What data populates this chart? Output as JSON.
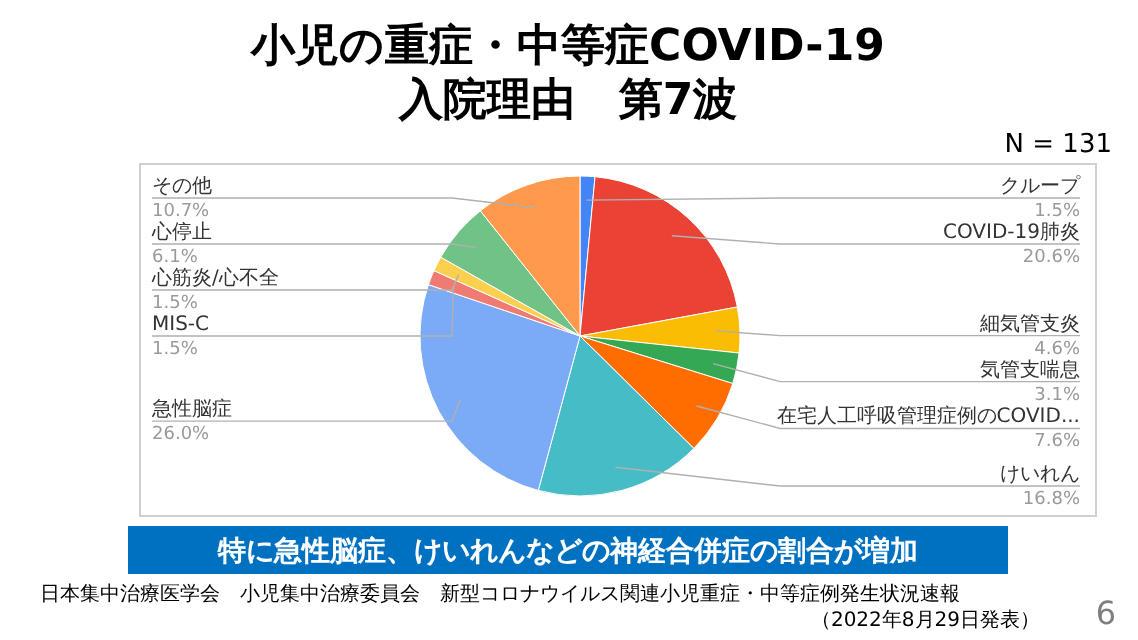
{
  "chart_data": {
    "type": "pie",
    "title": "小児の重症・中等症COVID-19\n入院理由　第7波",
    "categories": [
      "クループ",
      "COVID-19肺炎",
      "細気管支炎",
      "気管支喘息",
      "在宅人工呼吸管理症例のCOVID...",
      "けいれん",
      "急性脳症",
      "MIS-C",
      "心筋炎/心不全",
      "心停止",
      "その他"
    ],
    "values": [
      1.5,
      20.6,
      4.6,
      3.1,
      7.6,
      16.8,
      26.0,
      1.5,
      1.5,
      6.1,
      10.7
    ],
    "value_labels": [
      "1.5%",
      "20.6%",
      "4.6%",
      "3.1%",
      "7.6%",
      "16.8%",
      "26.0%",
      "1.5%",
      "1.5%",
      "6.1%",
      "10.7%"
    ],
    "colors": [
      "#4285f4",
      "#ea4335",
      "#fbbc04",
      "#34a853",
      "#ff6d01",
      "#46bdc6",
      "#7baaf7",
      "#f07b72",
      "#fcd04f",
      "#71c287",
      "#ff994d"
    ],
    "annotations": [
      "N = 131",
      "特に急性脳症、けいれんなどの神経合併症の割合が増加",
      "日本集中治療医学会　小児集中治療委員会　新型コロナウイルス関連小児重症・中等症例発生状況速報",
      "（2022年8月29日発表）",
      "6"
    ]
  }
}
